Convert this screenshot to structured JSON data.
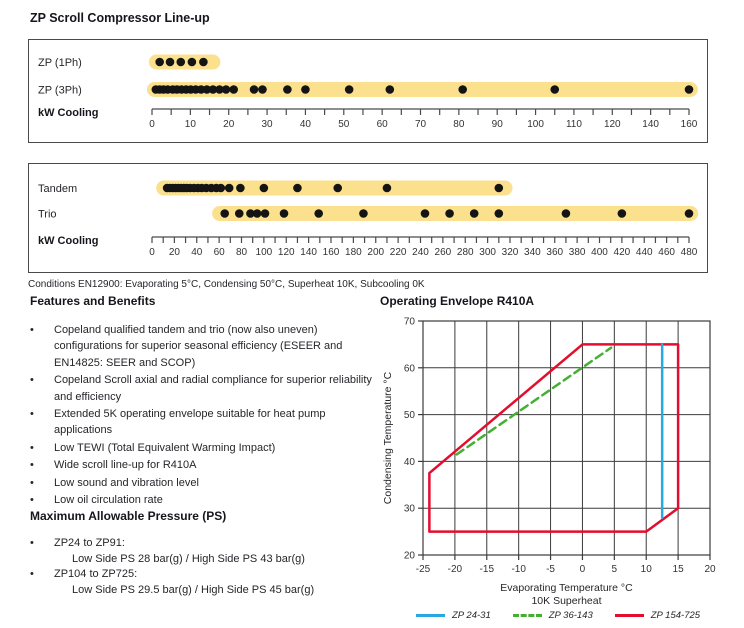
{
  "page": {
    "title": "ZP Scroll Compressor Line-up",
    "conditions": "Conditions EN12900: Evaporating 5°C, Condensing 50°C, Superheat 10K, Subcooling 0K"
  },
  "features": {
    "heading": "Features and Benefits",
    "items": [
      "Copeland qualified tandem and trio (now also uneven) configurations for superior seasonal efficiency (ESEER and EN14825: SEER and SCOP)",
      "Copeland Scroll axial and radial compliance for superior reliability and efficiency",
      "Extended 5K operating envelope suitable for heat pump applications",
      "Low TEWI (Total Equivalent Warming Impact)",
      "Wide scroll line-up for R410A",
      "Low sound and vibration level",
      "Low oil circulation rate"
    ]
  },
  "pressure": {
    "heading": "Maximum Allowable Pressure (PS)",
    "items": [
      {
        "range": "ZP24 to ZP91:",
        "values": "Low Side PS 28 bar(g) / High Side PS 43 bar(g)"
      },
      {
        "range": "ZP104 to ZP725:",
        "values": "Low Side PS 29.5 bar(g) / High Side PS 45 bar(g)"
      }
    ]
  },
  "envelope_section": {
    "heading": "Operating Envelope R410A"
  },
  "colors": {
    "band": "#FBE18D",
    "dot": "#141414",
    "box_border": "#4a4a4a",
    "axis": "#4a4a4a",
    "tick_label": "#333333",
    "grid": "#3b3b3b",
    "blue": "#2AA9E0",
    "green": "#44B032",
    "red": "#E30D2E",
    "heading_text": "#15161c"
  },
  "chart_data": [
    {
      "name": "lineup-single",
      "type": "dotplot",
      "axis_label": "kW Cooling",
      "ticks": [
        0,
        10,
        20,
        30,
        40,
        50,
        60,
        70,
        80,
        90,
        100,
        110,
        120,
        140,
        160
      ],
      "note": "ticks equally spaced; scale compresses above 120",
      "rows": [
        {
          "label": "ZP (1Ph)",
          "band": [
            1,
            16
          ],
          "dots": [
            2,
            4.7,
            7.5,
            10.4,
            13.4
          ]
        },
        {
          "label": "ZP (3Ph)",
          "band": [
            0.5,
            161
          ],
          "dots": [
            1,
            2,
            3,
            4.1,
            5.4,
            6.5,
            7.7,
            8.9,
            10.1,
            11.4,
            12.8,
            14.3,
            15.9,
            17.6,
            19.3,
            21.3,
            26.6,
            28.8,
            35.3,
            40,
            51.4,
            62,
            81,
            105,
            160
          ]
        }
      ]
    },
    {
      "name": "lineup-multi",
      "type": "dotplot",
      "axis_label": "kW Cooling",
      "ticks": [
        0,
        20,
        40,
        60,
        80,
        100,
        120,
        140,
        160,
        180,
        200,
        220,
        240,
        260,
        280,
        300,
        320,
        340,
        360,
        380,
        400,
        420,
        440,
        460,
        480
      ],
      "rows": [
        {
          "label": "Tandem",
          "band": [
            10,
            316
          ],
          "dots": [
            13.5,
            16,
            18.5,
            21,
            23.5,
            26,
            28.5,
            31,
            34,
            37.5,
            41,
            44.5,
            48.5,
            53,
            57.5,
            61.5,
            69,
            79,
            100,
            130,
            166,
            210,
            310
          ]
        },
        {
          "label": "Trio",
          "band": [
            60,
            482
          ],
          "dots": [
            65,
            78,
            88,
            94,
            101,
            118,
            149,
            189,
            244,
            266,
            288,
            310,
            370,
            420,
            480
          ]
        }
      ]
    },
    {
      "name": "operating-envelope",
      "type": "line",
      "title": "Operating Envelope R410A",
      "xlabel": "Evaporating Temperature °C",
      "xlabel2": "10K Superheat",
      "ylabel": "Condensing Temperature °C",
      "xlim": [
        -25,
        20
      ],
      "ylim": [
        20,
        70
      ],
      "xticks": [
        -25,
        -20,
        -15,
        -10,
        -5,
        0,
        5,
        10,
        15,
        20
      ],
      "yticks": [
        20,
        30,
        40,
        50,
        60,
        70
      ],
      "grid": true,
      "legend_position": "bottom",
      "series": [
        {
          "name": "ZP 24-31",
          "color": "#2AA9E0",
          "style": "solid",
          "closed": false,
          "points": [
            [
              12.5,
              65
            ],
            [
              12.5,
              28
            ]
          ]
        },
        {
          "name": "ZP 36-143",
          "color": "#44B032",
          "style": "dashed",
          "closed": false,
          "points": [
            [
              -19.7,
              41.5
            ],
            [
              4.5,
              64.3
            ]
          ]
        },
        {
          "name": "ZP 154-725",
          "color": "#E30D2E",
          "style": "solid",
          "closed": true,
          "points": [
            [
              -24,
              25
            ],
            [
              -24,
              37.5
            ],
            [
              0,
              65
            ],
            [
              15,
              65
            ],
            [
              15,
              30
            ],
            [
              10,
              25
            ]
          ]
        }
      ]
    }
  ]
}
